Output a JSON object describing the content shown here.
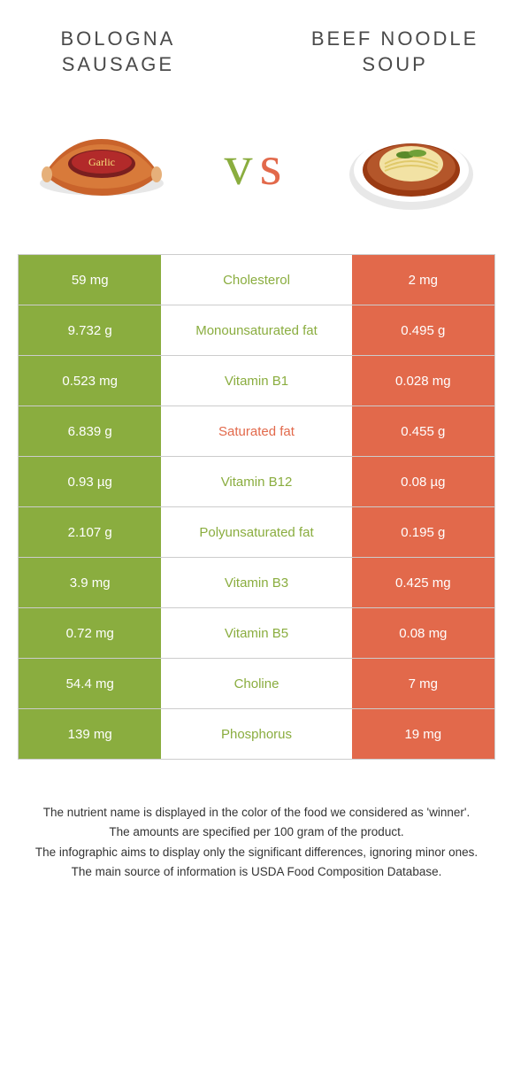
{
  "header": {
    "left_title": "Bologna Sausage",
    "right_title": "Beef Noodle Soup",
    "vs_v": "v",
    "vs_s": "s"
  },
  "colors": {
    "left": "#8aad3f",
    "right": "#e2694b",
    "border": "#cccccc",
    "text": "#333333",
    "white": "#ffffff"
  },
  "rows": [
    {
      "left": "59 mg",
      "label": "Cholesterol",
      "right": "2 mg",
      "winner": "left"
    },
    {
      "left": "9.732 g",
      "label": "Monounsaturated fat",
      "right": "0.495 g",
      "winner": "left"
    },
    {
      "left": "0.523 mg",
      "label": "Vitamin B1",
      "right": "0.028 mg",
      "winner": "left"
    },
    {
      "left": "6.839 g",
      "label": "Saturated fat",
      "right": "0.455 g",
      "winner": "right"
    },
    {
      "left": "0.93 µg",
      "label": "Vitamin B12",
      "right": "0.08 µg",
      "winner": "left"
    },
    {
      "left": "2.107 g",
      "label": "Polyunsaturated fat",
      "right": "0.195 g",
      "winner": "left"
    },
    {
      "left": "3.9 mg",
      "label": "Vitamin B3",
      "right": "0.425 mg",
      "winner": "left"
    },
    {
      "left": "0.72 mg",
      "label": "Vitamin B5",
      "right": "0.08 mg",
      "winner": "left"
    },
    {
      "left": "54.4 mg",
      "label": "Choline",
      "right": "7 mg",
      "winner": "left"
    },
    {
      "left": "139 mg",
      "label": "Phosphorus",
      "right": "19 mg",
      "winner": "left"
    }
  ],
  "footnotes": [
    "The nutrient name is displayed in the color of the food we considered as 'winner'.",
    "The amounts are specified per 100 gram of the product.",
    "The infographic aims to display only the significant differences, ignoring minor ones.",
    "The main source of information is USDA Food Composition Database."
  ]
}
